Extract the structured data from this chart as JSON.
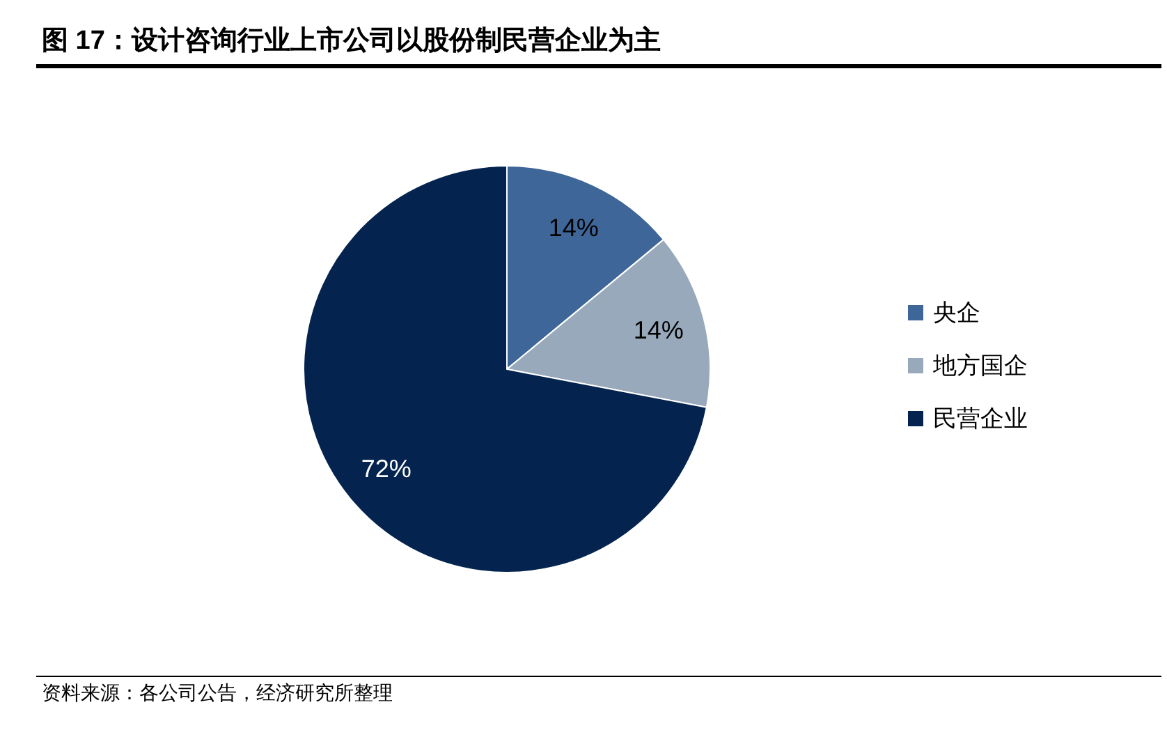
{
  "chart_data": {
    "type": "pie",
    "title": "图 17：设计咨询行业上市公司以股份制民营企业为主",
    "categories": [
      "央企",
      "地方国企",
      "民营企业"
    ],
    "values": [
      14,
      14,
      72
    ],
    "colors": [
      "#3e6698",
      "#98a9bb",
      "#04244f"
    ],
    "value_labels": [
      "14%",
      "14%",
      "72%"
    ],
    "legend": "right",
    "annotations": [
      "资料来源：各公司公告，经济研究所整理"
    ]
  }
}
